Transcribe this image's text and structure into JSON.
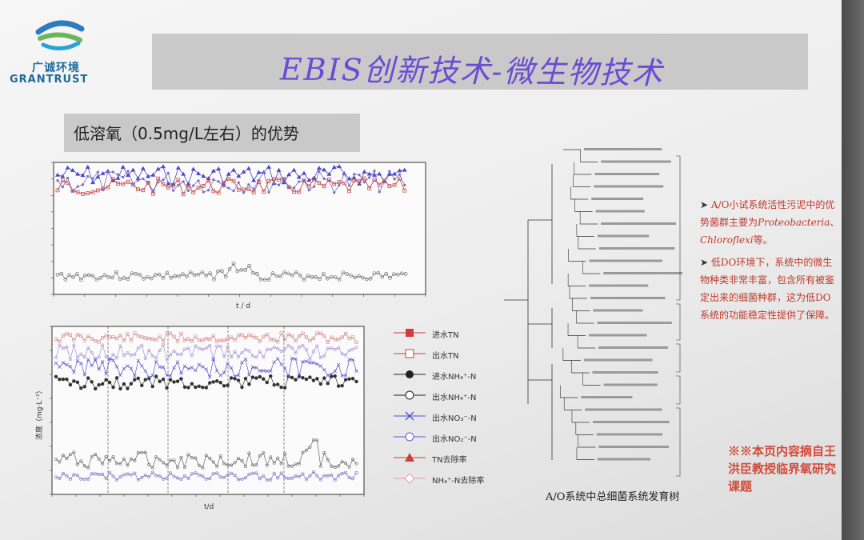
{
  "logo": {
    "cn": "广诚环境",
    "en": "GRANTRUST"
  },
  "title": "EBIS创新技术-微生物技术",
  "subtitle": "低溶氧（0.5mg/L左右）的优势",
  "top_chart": {
    "xlabel": "t / d"
  },
  "bottom_chart": {
    "xlabel": "t/d",
    "ylabel": "浓度（mg·L⁻¹）"
  },
  "legend": [
    {
      "label": "进水TN",
      "color": "#d33c3c",
      "marker": "square-filled"
    },
    {
      "label": "出水TN",
      "color": "#d33c3c",
      "marker": "square-open"
    },
    {
      "label": "进水NH₄⁺-N",
      "color": "#222222",
      "marker": "circle-filled"
    },
    {
      "label": "出水NH₄⁺-N",
      "color": "#222222",
      "marker": "circle-open"
    },
    {
      "label": "出水NO₃⁻-N",
      "color": "#4a55c9",
      "marker": "cross"
    },
    {
      "label": "出水NO₂⁻-N",
      "color": "#6a58c8",
      "marker": "circle-open"
    },
    {
      "label": "TN去除率",
      "color": "#d33c3c",
      "marker": "triangle"
    },
    {
      "label": "NH₄⁺-N去除率",
      "color": "#e79aa8",
      "marker": "diamond"
    }
  ],
  "tree_caption": "A/O系统中总细菌系统发育树",
  "bullets": {
    "b1_prefix": "A/O小试系统活性污泥中的优势菌群主要为",
    "b1_em1": "Proteobacteria",
    "b1_sep": "、",
    "b1_em2": "Chloroflexi",
    "b1_suffix": "等。",
    "b2": "低DO环境下，系统中的微生物种类非常丰富，包含所有被鉴定出来的细菌种群，这为低DO系统的功能稳定性提供了保障。"
  },
  "note": "※※本页内容摘自王洪臣教授临界氧研究课题"
}
